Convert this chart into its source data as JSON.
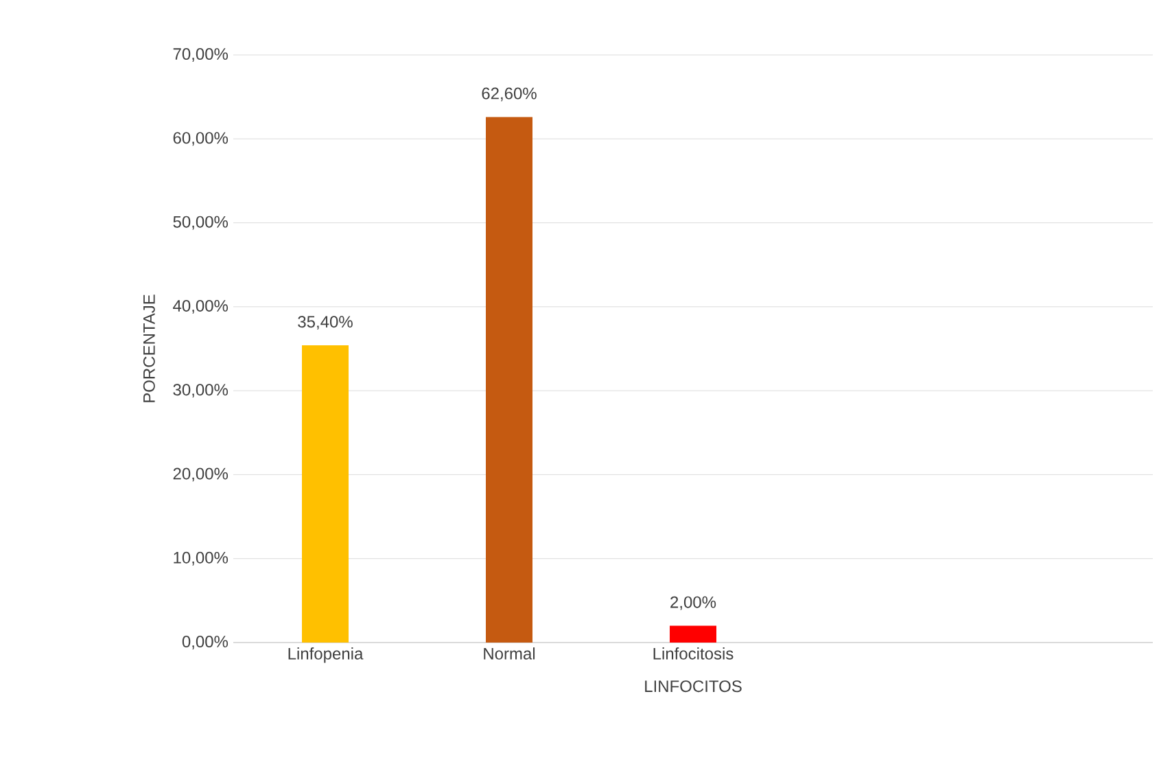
{
  "chart_data": {
    "type": "bar",
    "xlabel": "LINFOCITOS",
    "ylabel": "PORCENTAJE",
    "categories": [
      "Linfopenia",
      "Normal",
      "Linfocitosis",
      null,
      null
    ],
    "values": [
      35.4,
      62.6,
      2.0,
      null,
      null
    ],
    "colors": [
      "#ffc000",
      "#c55a11",
      "#ff0000",
      "#000000",
      "#000000"
    ],
    "value_labels": [
      "35,40%",
      "62,60%",
      "2,00%",
      null,
      null
    ],
    "ylim": [
      0,
      70
    ],
    "yticks": [
      {
        "value": 0,
        "label": "0,00%"
      },
      {
        "value": 10,
        "label": "10,00%"
      },
      {
        "value": 20,
        "label": "20,00%"
      },
      {
        "value": 30,
        "label": "30,00%"
      },
      {
        "value": 40,
        "label": "40,00%"
      },
      {
        "value": 50,
        "label": "50,00%"
      },
      {
        "value": 60,
        "label": "60,00%"
      },
      {
        "value": 70,
        "label": "70,00%"
      }
    ],
    "grid": "y"
  }
}
